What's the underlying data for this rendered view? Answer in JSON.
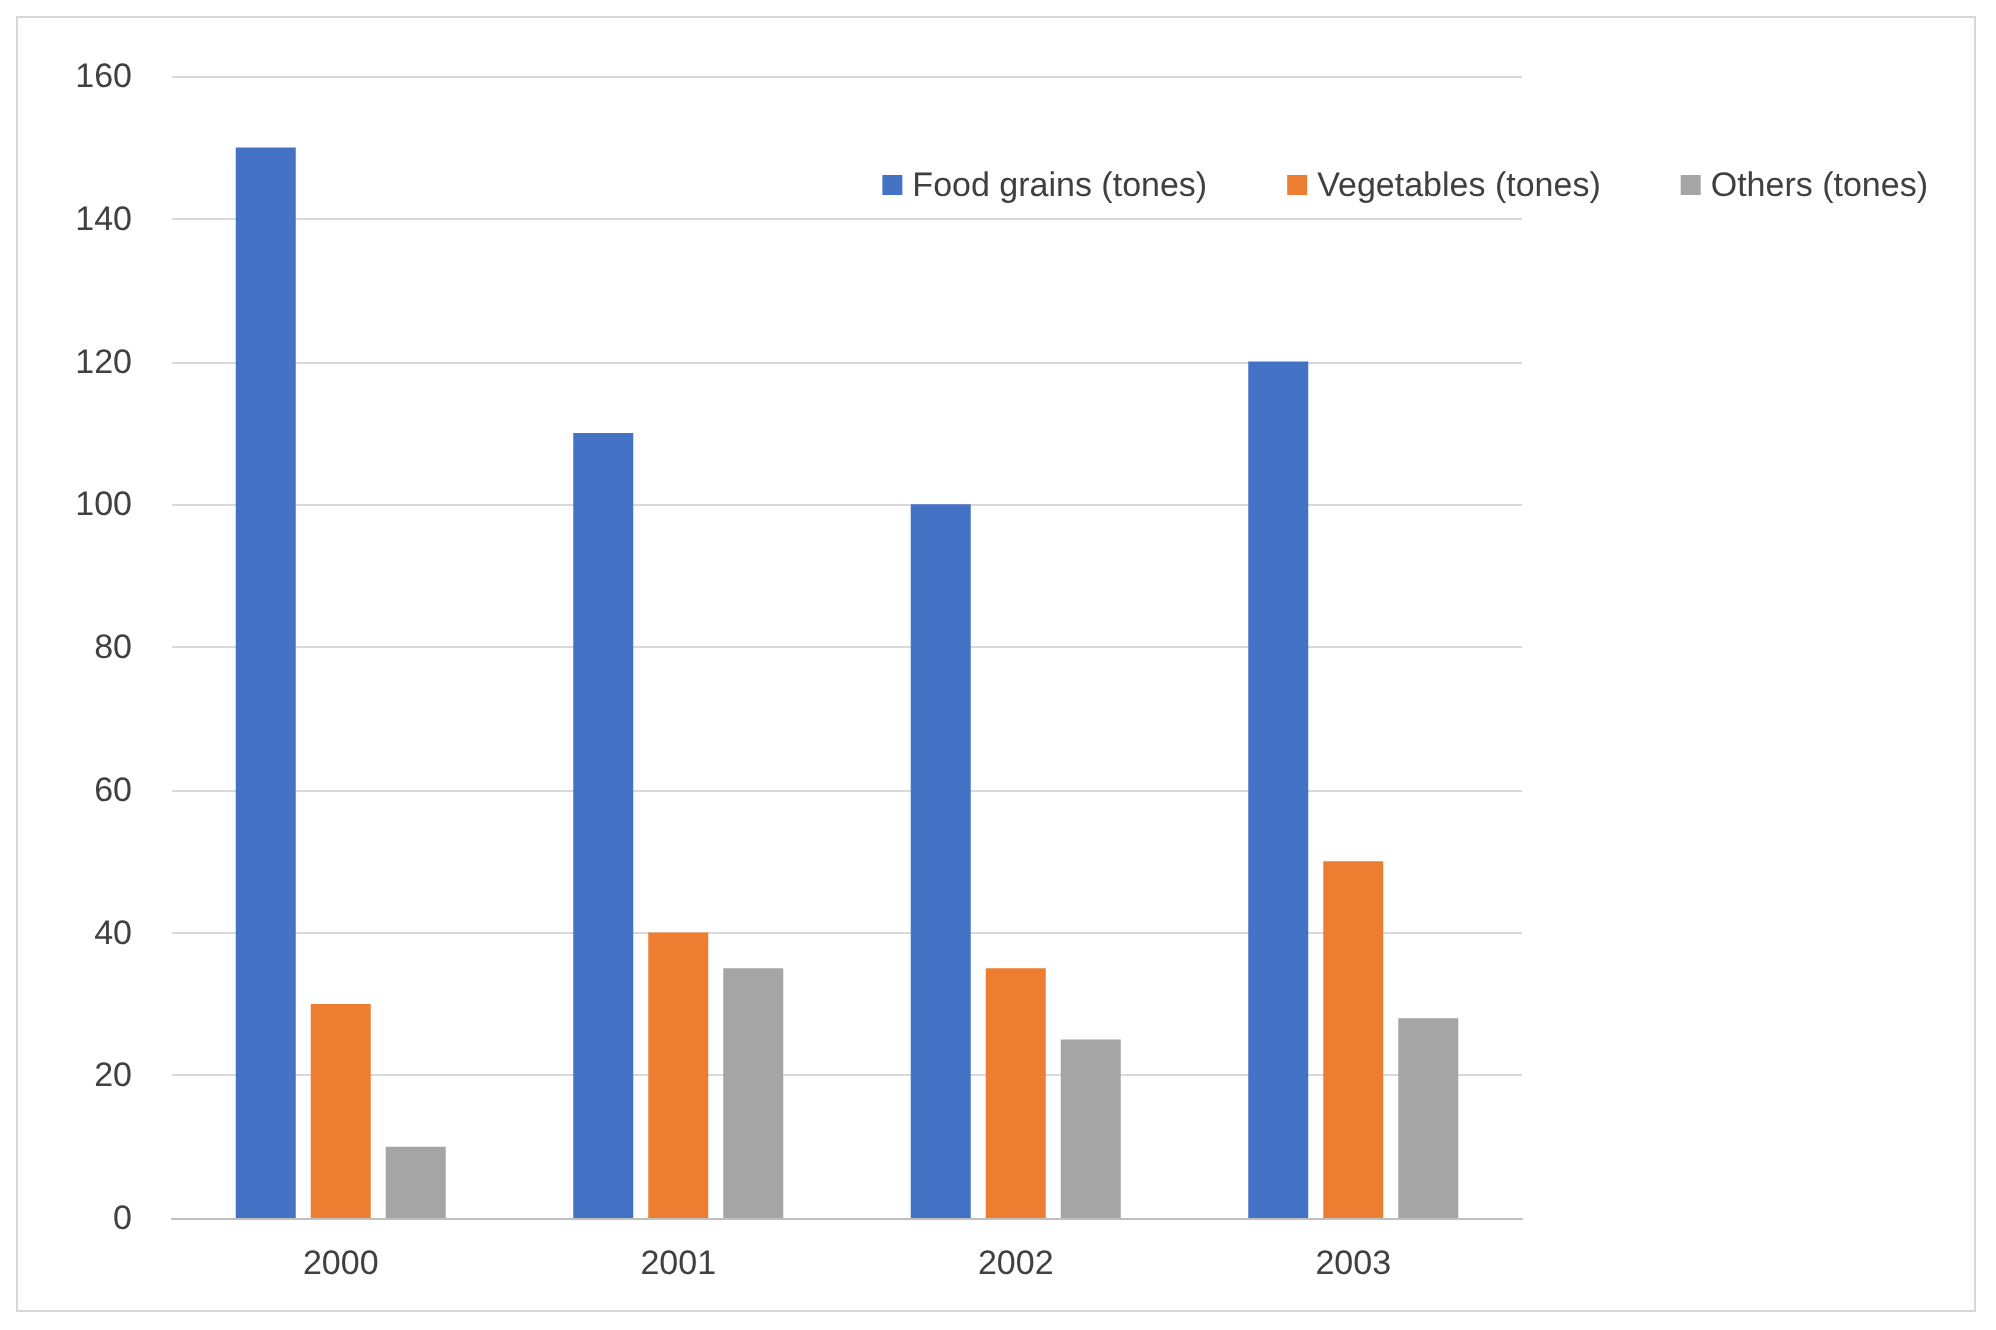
{
  "chart_data": {
    "type": "bar",
    "categories": [
      "2000",
      "2001",
      "2002",
      "2003"
    ],
    "series": [
      {
        "name": "Food grains (tones)",
        "color": "#4472c4",
        "values": [
          150,
          110,
          100,
          120
        ]
      },
      {
        "name": "Vegetables (tones)",
        "color": "#ed7d31",
        "values": [
          30,
          40,
          35,
          50
        ]
      },
      {
        "name": "Others (tones)",
        "color": "#a5a5a5",
        "values": [
          10,
          35,
          25,
          28
        ]
      }
    ],
    "ylim": [
      0,
      160
    ],
    "yticks": [
      0,
      20,
      40,
      60,
      80,
      100,
      120,
      140,
      160
    ],
    "grid": "y",
    "legend": "top right"
  }
}
